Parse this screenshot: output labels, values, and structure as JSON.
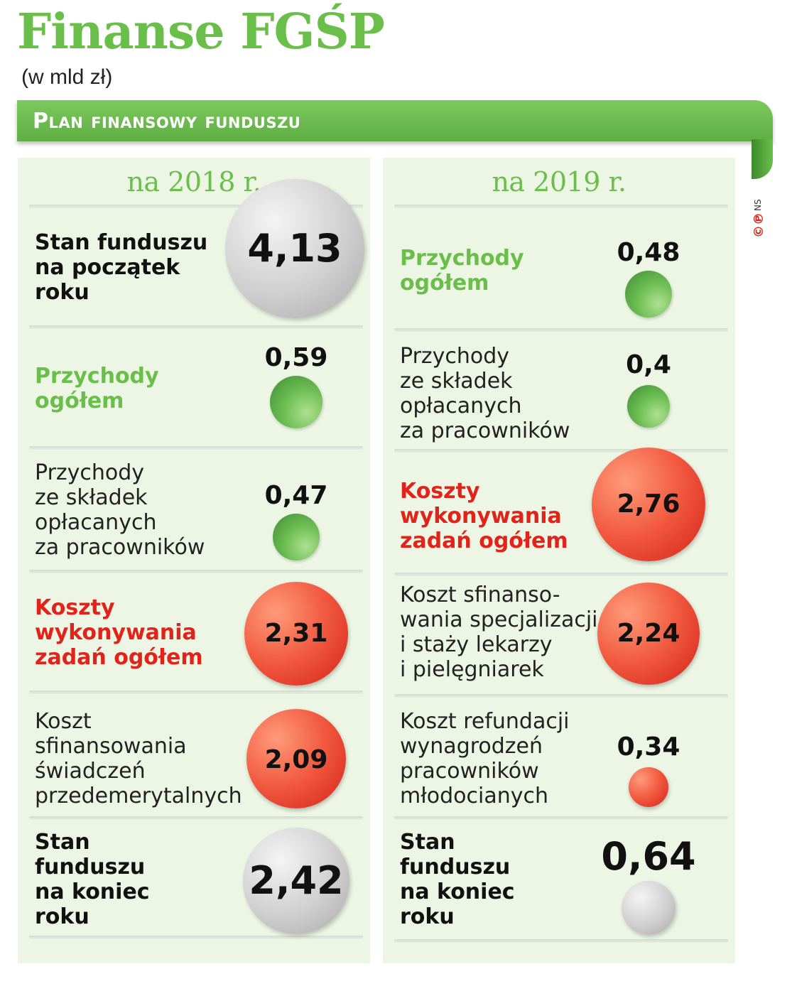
{
  "header": {
    "title": "Finanse FGŚP",
    "unit": "(w mld zł)",
    "banner": "Plan finansowy funduszu",
    "copyright": "©℗",
    "credit": "NS"
  },
  "colors": {
    "green": "#6abf4b",
    "red": "#e2231a",
    "gray": "#c8c8c8",
    "panel": "#edf6e4"
  },
  "chart_data": {
    "type": "table",
    "title": "Finanse FGŚP",
    "unit": "(w mld zł)",
    "columns": [
      {
        "name": "na 2018 r.",
        "items": [
          {
            "label": "Stan funduszu na początek roku",
            "value": 4.13,
            "display": "4,13",
            "kind": "balance"
          },
          {
            "label": "Przychody ogółem",
            "value": 0.59,
            "display": "0,59",
            "kind": "income"
          },
          {
            "label": "Przychody ze składek opłacanych za pracowników",
            "value": 0.47,
            "display": "0,47",
            "kind": "income"
          },
          {
            "label": "Koszty wykonywania zadań ogółem",
            "value": 2.31,
            "display": "2,31",
            "kind": "cost"
          },
          {
            "label": "Koszt sfinansowania świadczeń przedemerytalnych",
            "value": 2.09,
            "display": "2,09",
            "kind": "cost"
          },
          {
            "label": "Stan funduszu na koniec roku",
            "value": 2.42,
            "display": "2,42",
            "kind": "balance"
          }
        ]
      },
      {
        "name": "na 2019 r.",
        "items": [
          {
            "label": "Przychody ogółem",
            "value": 0.48,
            "display": "0,48",
            "kind": "income"
          },
          {
            "label": "Przychody ze składek opłacanych za pracowników",
            "value": 0.4,
            "display": "0,4",
            "kind": "income"
          },
          {
            "label": "Koszty wykonywania zadań ogółem",
            "value": 2.76,
            "display": "2,76",
            "kind": "cost"
          },
          {
            "label": "Koszt sfinansowania specjalizacji i staży lekarzy i pielęgniarek",
            "value": 2.24,
            "display": "2,24",
            "kind": "cost"
          },
          {
            "label": "Koszt refundacji wynagrodzeń pracowników młodocianych",
            "value": 0.34,
            "display": "0,34",
            "kind": "cost"
          },
          {
            "label": "Stan funduszu na koniec roku",
            "value": 0.64,
            "display": "0,64",
            "kind": "balance"
          }
        ]
      }
    ]
  },
  "labels": {
    "y2018": [
      [
        "Stan funduszu",
        "na początek",
        "roku"
      ],
      [
        "Przychody",
        "ogółem"
      ],
      [
        "Przychody",
        "ze składek",
        "opłacanych",
        "za pracowników"
      ],
      [
        "Koszty",
        "wykonywania",
        "zadań ogółem"
      ],
      [
        "Koszt",
        "sfinansowania",
        "świadczeń",
        "przedemerytalnych"
      ],
      [
        "Stan",
        "funduszu",
        "na koniec",
        "roku"
      ]
    ],
    "y2019": [
      [
        "Przychody",
        "ogółem"
      ],
      [
        "Przychody",
        "ze składek",
        "opłacanych",
        "za pracowników"
      ],
      [
        "Koszty",
        "wykonywania",
        "zadań ogółem"
      ],
      [
        "Koszt sfinanso-",
        "wania specjalizacji",
        "i staży lekarzy",
        "i pielęgniarek"
      ],
      [
        "Koszt refundacji",
        "wynagrodzeń",
        "pracowników",
        "młodocianych"
      ],
      [
        "Stan",
        "funduszu",
        "na koniec",
        "roku"
      ]
    ]
  }
}
